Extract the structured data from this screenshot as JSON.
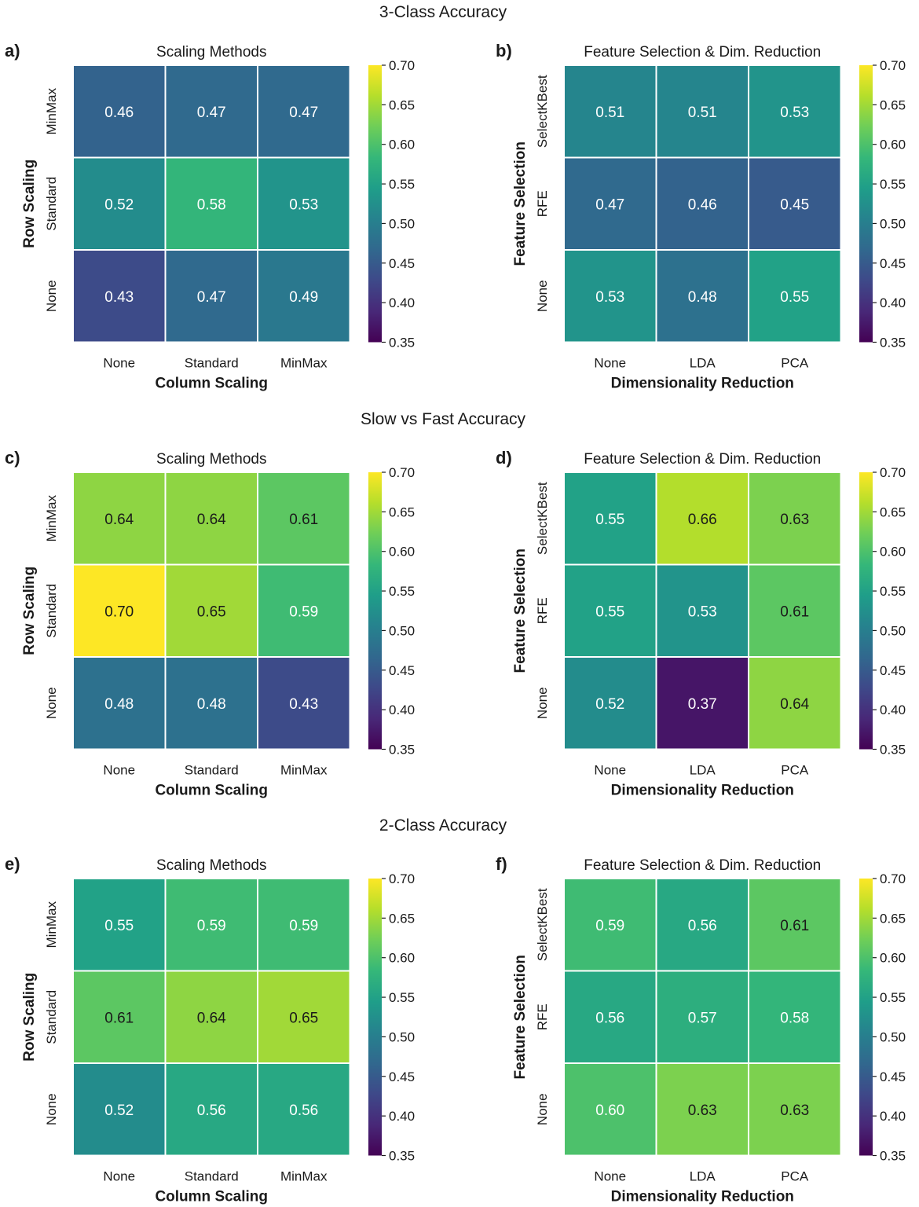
{
  "colorscale": {
    "name": "viridis",
    "vmin": 0.35,
    "vmax": 0.7,
    "ticks": [
      "0.35",
      "0.40",
      "0.45",
      "0.50",
      "0.55",
      "0.60",
      "0.65",
      "0.70"
    ],
    "stops": [
      "#440154",
      "#482878",
      "#3e4989",
      "#31688e",
      "#26828e",
      "#1f9e89",
      "#35b779",
      "#6ece58",
      "#b5de2b",
      "#fde725"
    ]
  },
  "chart_data": [
    {
      "type": "heatmap",
      "panel_label": "a)",
      "section_title": "3-Class Accuracy",
      "title": "Scaling Methods",
      "xlabel": "Column Scaling",
      "ylabel": "Row Scaling",
      "x_categories": [
        "None",
        "Standard",
        "MinMax"
      ],
      "y_categories": [
        "MinMax",
        "Standard",
        "None"
      ],
      "values": [
        [
          0.46,
          0.47,
          0.47
        ],
        [
          0.52,
          0.58,
          0.53
        ],
        [
          0.43,
          0.47,
          0.49
        ]
      ],
      "labels": [
        [
          "0.46",
          "0.47",
          "0.47"
        ],
        [
          "0.52",
          "0.58",
          "0.53"
        ],
        [
          "0.43",
          "0.47",
          "0.49"
        ]
      ]
    },
    {
      "type": "heatmap",
      "panel_label": "b)",
      "title": "Feature Selection & Dim. Reduction",
      "xlabel": "Dimensionality Reduction",
      "ylabel": "Feature Selection",
      "x_categories": [
        "None",
        "LDA",
        "PCA"
      ],
      "y_categories": [
        "SelectKBest",
        "RFE",
        "None"
      ],
      "values": [
        [
          0.51,
          0.51,
          0.53
        ],
        [
          0.47,
          0.46,
          0.45
        ],
        [
          0.53,
          0.48,
          0.55
        ]
      ],
      "labels": [
        [
          "0.51",
          "0.51",
          "0.53"
        ],
        [
          "0.47",
          "0.46",
          "0.45"
        ],
        [
          "0.53",
          "0.48",
          "0.55"
        ]
      ]
    },
    {
      "type": "heatmap",
      "panel_label": "c)",
      "section_title": "Slow vs Fast Accuracy",
      "title": "Scaling Methods",
      "xlabel": "Column Scaling",
      "ylabel": "Row Scaling",
      "x_categories": [
        "None",
        "Standard",
        "MinMax"
      ],
      "y_categories": [
        "MinMax",
        "Standard",
        "None"
      ],
      "values": [
        [
          0.64,
          0.64,
          0.61
        ],
        [
          0.7,
          0.65,
          0.59
        ],
        [
          0.48,
          0.48,
          0.43
        ]
      ],
      "labels": [
        [
          "0.64",
          "0.64",
          "0.61"
        ],
        [
          "0.70",
          "0.65",
          "0.59"
        ],
        [
          "0.48",
          "0.48",
          "0.43"
        ]
      ]
    },
    {
      "type": "heatmap",
      "panel_label": "d)",
      "title": "Feature Selection & Dim. Reduction",
      "xlabel": "Dimensionality Reduction",
      "ylabel": "Feature Selection",
      "x_categories": [
        "None",
        "LDA",
        "PCA"
      ],
      "y_categories": [
        "SelectKBest",
        "RFE",
        "None"
      ],
      "values": [
        [
          0.55,
          0.66,
          0.63
        ],
        [
          0.55,
          0.53,
          0.61
        ],
        [
          0.52,
          0.37,
          0.64
        ]
      ],
      "labels": [
        [
          "0.55",
          "0.66",
          "0.63"
        ],
        [
          "0.55",
          "0.53",
          "0.61"
        ],
        [
          "0.52",
          "0.37",
          "0.64"
        ]
      ]
    },
    {
      "type": "heatmap",
      "panel_label": "e)",
      "section_title": "2-Class Accuracy",
      "title": "Scaling Methods",
      "xlabel": "Column Scaling",
      "ylabel": "Row Scaling",
      "x_categories": [
        "None",
        "Standard",
        "MinMax"
      ],
      "y_categories": [
        "MinMax",
        "Standard",
        "None"
      ],
      "values": [
        [
          0.55,
          0.59,
          0.59
        ],
        [
          0.61,
          0.64,
          0.65
        ],
        [
          0.52,
          0.56,
          0.56
        ]
      ],
      "labels": [
        [
          "0.55",
          "0.59",
          "0.59"
        ],
        [
          "0.61",
          "0.64",
          "0.65"
        ],
        [
          "0.52",
          "0.56",
          "0.56"
        ]
      ]
    },
    {
      "type": "heatmap",
      "panel_label": "f)",
      "title": "Feature Selection & Dim. Reduction",
      "xlabel": "Dimensionality Reduction",
      "ylabel": "Feature Selection",
      "x_categories": [
        "None",
        "LDA",
        "PCA"
      ],
      "y_categories": [
        "SelectKBest",
        "RFE",
        "None"
      ],
      "values": [
        [
          0.59,
          0.56,
          0.61
        ],
        [
          0.56,
          0.57,
          0.58
        ],
        [
          0.6,
          0.63,
          0.63
        ]
      ],
      "labels": [
        [
          "0.59",
          "0.56",
          "0.61"
        ],
        [
          "0.56",
          "0.57",
          "0.58"
        ],
        [
          "0.60",
          "0.63",
          "0.63"
        ]
      ]
    }
  ]
}
